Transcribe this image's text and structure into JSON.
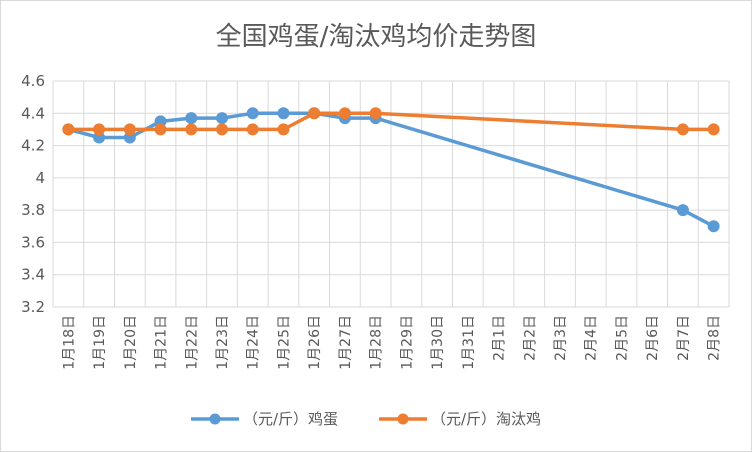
{
  "chart_data": {
    "type": "line",
    "title": "全国鸡蛋/淘汰鸡均价走势图",
    "categories": [
      "1月18日",
      "1月19日",
      "1月20日",
      "1月21日",
      "1月22日",
      "1月23日",
      "1月24日",
      "1月25日",
      "1月26日",
      "1月27日",
      "1月28日",
      "1月29日",
      "1月30日",
      "1月31日",
      "2月1日",
      "2月2日",
      "2月3日",
      "2月4日",
      "2月5日",
      "2月6日",
      "2月7日",
      "2月8日"
    ],
    "ylim": [
      3.2,
      4.6
    ],
    "yticks": [
      "3.2",
      "3.4",
      "3.6",
      "3.8",
      "4",
      "4.2",
      "4.4",
      "4.6"
    ],
    "grid": true,
    "legend_position": "bottom",
    "series": [
      {
        "name": "（元/斤）鸡蛋",
        "color": "#5b9bd5",
        "values": [
          4.3,
          4.25,
          4.25,
          4.35,
          4.37,
          4.37,
          4.4,
          4.4,
          4.4,
          4.37,
          4.37,
          null,
          null,
          null,
          null,
          null,
          null,
          null,
          null,
          null,
          3.8,
          3.7
        ]
      },
      {
        "name": "（元/斤）淘汰鸡",
        "color": "#ed7d31",
        "values": [
          4.3,
          4.3,
          4.3,
          4.3,
          4.3,
          4.3,
          4.3,
          4.3,
          4.4,
          4.4,
          4.4,
          null,
          null,
          null,
          null,
          null,
          null,
          null,
          null,
          null,
          4.3,
          4.3
        ]
      }
    ]
  }
}
